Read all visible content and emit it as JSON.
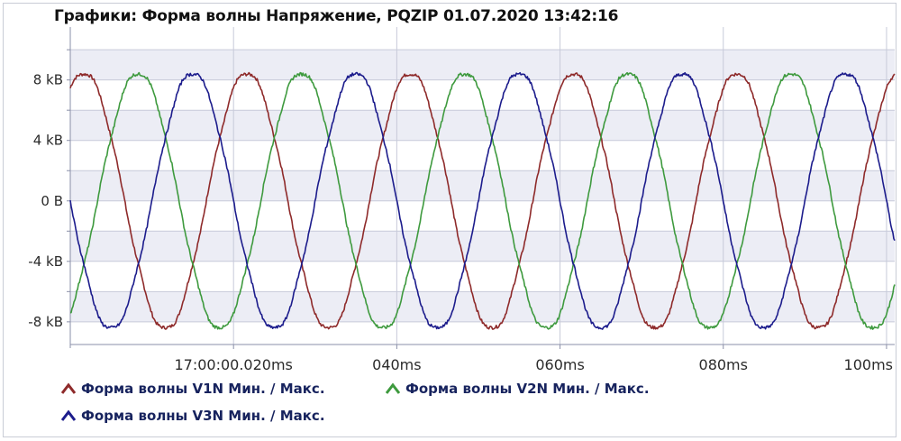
{
  "title": "Графики: Форма волны Напряжение, PQZIP 01.07.2020 13:42:16",
  "chart_data": {
    "type": "line",
    "title": "Графики: Форма волны Напряжение, PQZIP 01.07.2020 13:42:16",
    "xlabel": "",
    "ylabel": "",
    "x_unit": "ms",
    "xlim": [
      0,
      101
    ],
    "ylim": [
      -9.5,
      11.5
    ],
    "y_ticks": [
      8,
      4,
      0,
      -4,
      -8
    ],
    "y_tick_labels": [
      "8 kB",
      "4 kB",
      "0 B",
      "-4 kB",
      "-8 kB"
    ],
    "x_ticks": [
      20,
      40,
      60,
      80,
      100
    ],
    "x_tick_labels": [
      "17:00:00.020ms",
      "040ms",
      "060ms",
      "080ms",
      "100ms"
    ],
    "grid": true,
    "legend_position": "bottom",
    "series": [
      {
        "name": "Форма волны V1N Мин. / Макс.",
        "color": "#8e2a2a",
        "amplitude": 8.5,
        "frequency_hz": 50,
        "phase_deg": 60
      },
      {
        "name": "Форма волны V2N Мин. / Макс.",
        "color": "#3e9a3e",
        "amplitude": 8.5,
        "frequency_hz": 50,
        "phase_deg": -60
      },
      {
        "name": "Форма волны V3N Мин. / Макс.",
        "color": "#1c1c8c",
        "amplitude": 8.5,
        "frequency_hz": 50,
        "phase_deg": 180
      }
    ]
  }
}
